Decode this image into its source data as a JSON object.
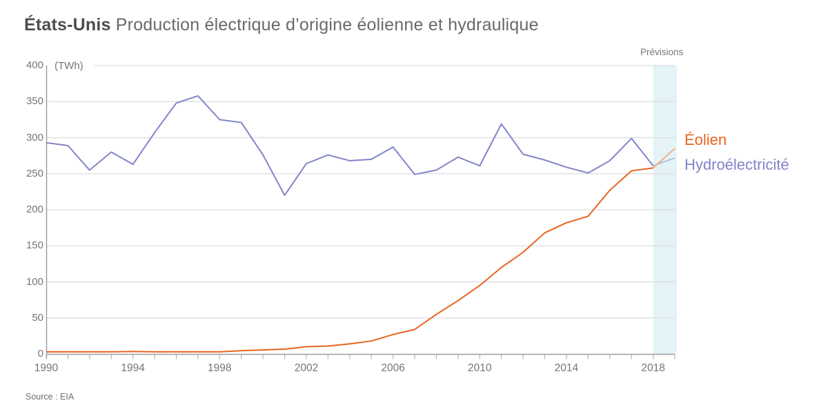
{
  "header": {
    "title_bold": "États-Unis",
    "title_rest": "Production électrique d’origine éolienne et hydraulique"
  },
  "chart": {
    "unit_label": "(TWh)",
    "forecast_label": "Prévisions"
  },
  "legend": {
    "wind": "Éolien",
    "hydro": "Hydroélectricité"
  },
  "footer": {
    "source": "Source : EIA"
  },
  "colors": {
    "wind_line": "#e7641e",
    "wind_forecast": "#f3af80",
    "hydro_line": "#8084c8",
    "hydro_forecast": "#b3c3df",
    "forecast_band": "#e4f3f6",
    "gridline": "#dcdcdc",
    "axis": "#9a9a9a",
    "tick": "#b3b3b3",
    "label_text": "#757575"
  },
  "chart_data": {
    "type": "line",
    "title": "États-Unis — Production électrique d’origine éolienne et hydraulique",
    "unit": "TWh",
    "ylabel": "(TWh)",
    "xlabel": "",
    "x": [
      1990,
      1991,
      1992,
      1993,
      1994,
      1995,
      1996,
      1997,
      1998,
      1999,
      2000,
      2001,
      2002,
      2003,
      2004,
      2005,
      2006,
      2007,
      2008,
      2009,
      2010,
      2011,
      2012,
      2013,
      2014,
      2015,
      2016,
      2017,
      2018,
      2019
    ],
    "series": [
      {
        "name": "Éolien",
        "color": "#e7641e",
        "forecast_color": "#f3af80",
        "values": [
          3,
          3,
          3,
          3,
          3.5,
          3,
          3,
          3,
          3,
          4.5,
          5.6,
          6.7,
          10,
          11,
          14,
          18,
          27,
          34,
          55,
          74,
          95,
          120,
          141,
          168,
          182,
          191,
          227,
          254,
          258,
          285
        ]
      },
      {
        "name": "Hydroélectricité",
        "color": "#8084c8",
        "forecast_color": "#b3c3df",
        "values": [
          293,
          289,
          255,
          280,
          263,
          307,
          348,
          358,
          325,
          321,
          276,
          220,
          264,
          276,
          268,
          270,
          287,
          249,
          255,
          273,
          261,
          319,
          277,
          269,
          259,
          251,
          268,
          299,
          261,
          272
        ]
      }
    ],
    "forecast": {
      "label": "Prévisions",
      "start_year": 2018,
      "end_year": 2019,
      "band_color": "#e4f3f6"
    },
    "ylim": [
      0,
      400
    ],
    "yticks": [
      0,
      50,
      100,
      150,
      200,
      250,
      300,
      350,
      400
    ],
    "xticks": [
      1990,
      1994,
      1998,
      2002,
      2006,
      2010,
      2014,
      2018
    ],
    "grid": "horizontal",
    "legend_position": "right",
    "source": "EIA"
  }
}
